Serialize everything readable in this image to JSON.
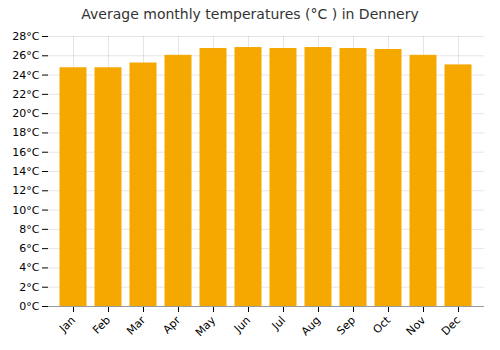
{
  "chart_data": {
    "type": "bar",
    "title": "Average monthly temperatures (°C ) in Dennery",
    "categories": [
      "Jan",
      "Feb",
      "Mar",
      "Apr",
      "May",
      "Jun",
      "Jul",
      "Aug",
      "Sep",
      "Oct",
      "Nov",
      "Dec"
    ],
    "values": [
      24.7,
      24.7,
      25.2,
      26.0,
      26.7,
      26.8,
      26.7,
      26.8,
      26.7,
      26.6,
      26.0,
      25.0
    ],
    "color": "#F5A800",
    "ylim": [
      0,
      28
    ],
    "yticks": [
      {
        "value": 0,
        "label": "0°C"
      },
      {
        "value": 2,
        "label": "2°C"
      },
      {
        "value": 4,
        "label": "4°C"
      },
      {
        "value": 6,
        "label": "6°C"
      },
      {
        "value": 8,
        "label": "8°C"
      },
      {
        "value": 10,
        "label": "10°C"
      },
      {
        "value": 12,
        "label": "12°C"
      },
      {
        "value": 14,
        "label": "14°C"
      },
      {
        "value": 16,
        "label": "16°C"
      },
      {
        "value": 18,
        "label": "18°C"
      },
      {
        "value": 20,
        "label": "20°C"
      },
      {
        "value": 22,
        "label": "22°C"
      },
      {
        "value": 24,
        "label": "24°C"
      },
      {
        "value": 26,
        "label": "26°C"
      },
      {
        "value": 28,
        "label": "28°C"
      }
    ],
    "grid": true
  }
}
